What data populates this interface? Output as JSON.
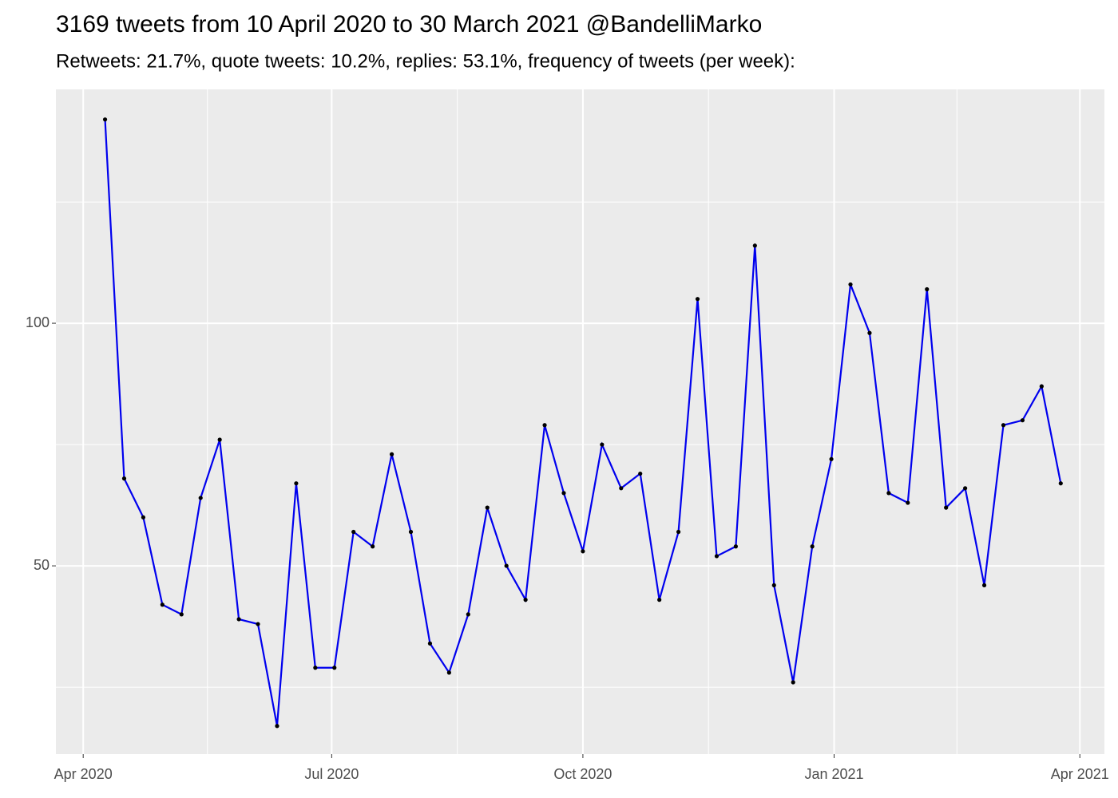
{
  "chart_data": {
    "type": "line",
    "title": "3169 tweets from 10 April 2020 to 30 March 2021 @BandelliMarko",
    "subtitle": "Retweets: 21.7%, quote tweets: 10.2%, replies: 53.1%, frequency of tweets (per week):",
    "x": [
      "2020-04-09",
      "2020-04-16",
      "2020-04-23",
      "2020-04-30",
      "2020-05-07",
      "2020-05-14",
      "2020-05-21",
      "2020-05-28",
      "2020-06-04",
      "2020-06-11",
      "2020-06-18",
      "2020-06-25",
      "2020-07-02",
      "2020-07-09",
      "2020-07-16",
      "2020-07-23",
      "2020-07-30",
      "2020-08-06",
      "2020-08-13",
      "2020-08-20",
      "2020-08-27",
      "2020-09-03",
      "2020-09-10",
      "2020-09-17",
      "2020-09-24",
      "2020-10-01",
      "2020-10-08",
      "2020-10-15",
      "2020-10-22",
      "2020-10-29",
      "2020-11-05",
      "2020-11-12",
      "2020-11-19",
      "2020-11-26",
      "2020-12-03",
      "2020-12-10",
      "2020-12-17",
      "2020-12-24",
      "2020-12-31",
      "2021-01-07",
      "2021-01-14",
      "2021-01-21",
      "2021-01-28",
      "2021-02-04",
      "2021-02-11",
      "2021-02-18",
      "2021-02-25",
      "2021-03-04",
      "2021-03-11",
      "2021-03-18",
      "2021-03-25"
    ],
    "values": [
      142,
      68,
      60,
      42,
      40,
      64,
      76,
      39,
      38,
      17,
      67,
      29,
      29,
      57,
      54,
      73,
      57,
      34,
      28,
      40,
      62,
      50,
      43,
      79,
      65,
      53,
      75,
      66,
      69,
      43,
      57,
      105,
      52,
      54,
      116,
      46,
      26,
      54,
      72,
      108,
      98,
      65,
      63,
      107,
      62,
      66,
      46,
      79,
      80,
      87,
      67
    ],
    "color": "#0000ee",
    "point_color": "#000000",
    "xlim": [
      "2020-03-22",
      "2021-04-10"
    ],
    "xticks": [
      {
        "value": "2020-04-01",
        "label": "Apr 2020"
      },
      {
        "value": "2020-07-01",
        "label": "Jul 2020"
      },
      {
        "value": "2020-10-01",
        "label": "Oct 2020"
      },
      {
        "value": "2021-01-01",
        "label": "Jan 2021"
      },
      {
        "value": "2021-04-01",
        "label": "Apr 2021"
      }
    ],
    "ylim": [
      11.2,
      148.2
    ],
    "yticks": [
      50,
      100
    ],
    "yminor": [
      25,
      75,
      125
    ],
    "grid": true
  }
}
